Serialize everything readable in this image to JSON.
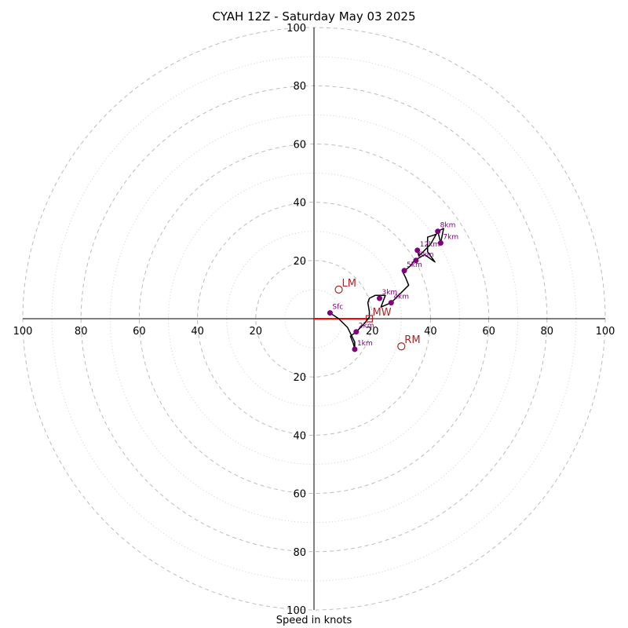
{
  "chart_data": {
    "type": "line",
    "title": "CYAH 12Z - Saturday May 03 2025",
    "xlabel": "Speed in knots",
    "ylabel": "",
    "xlim": [
      -100,
      100
    ],
    "ylim": [
      -100,
      100
    ],
    "ring_major": [
      20,
      40,
      60,
      80,
      100
    ],
    "ring_minor": [
      10,
      30,
      50,
      70,
      90
    ],
    "tick_labels": {
      "x": [
        {
          "value": -100,
          "label": "100"
        },
        {
          "value": -80,
          "label": "80"
        },
        {
          "value": -60,
          "label": "60"
        },
        {
          "value": -40,
          "label": "40"
        },
        {
          "value": -20,
          "label": "20"
        },
        {
          "value": 20,
          "label": "20"
        },
        {
          "value": 40,
          "label": "40"
        },
        {
          "value": 60,
          "label": "60"
        },
        {
          "value": 80,
          "label": "80"
        },
        {
          "value": 100,
          "label": "100"
        }
      ],
      "y": [
        {
          "value": 100,
          "label": "100"
        },
        {
          "value": 80,
          "label": "80"
        },
        {
          "value": 60,
          "label": "60"
        },
        {
          "value": 40,
          "label": "40"
        },
        {
          "value": 20,
          "label": "20"
        },
        {
          "value": -20,
          "label": "20"
        },
        {
          "value": -40,
          "label": "40"
        },
        {
          "value": -60,
          "label": "60"
        },
        {
          "value": -80,
          "label": "80"
        },
        {
          "value": -100,
          "label": "100"
        }
      ]
    },
    "trace": {
      "color": "#000000",
      "points": [
        [
          5.5,
          2.0
        ],
        [
          8.5,
          0.0
        ],
        [
          11.5,
          -3.0
        ],
        [
          12.5,
          -5.0
        ],
        [
          14.0,
          -8.0
        ],
        [
          14.0,
          -10.5
        ],
        [
          13.5,
          -8.5
        ],
        [
          12.5,
          -6.0
        ],
        [
          14.5,
          -4.5
        ],
        [
          17.0,
          -2.0
        ],
        [
          19.0,
          0.5
        ],
        [
          19.0,
          2.5
        ],
        [
          18.5,
          5.5
        ],
        [
          19.0,
          7.0
        ],
        [
          21.0,
          8.0
        ],
        [
          24.5,
          8.0
        ],
        [
          23.0,
          4.0
        ],
        [
          26.5,
          5.5
        ],
        [
          29.0,
          8.0
        ],
        [
          32.5,
          11.5
        ],
        [
          31.5,
          14.0
        ],
        [
          30.5,
          16.0
        ],
        [
          33.0,
          18.0
        ],
        [
          34.5,
          20.0
        ],
        [
          38.0,
          22.0
        ],
        [
          41.5,
          19.5
        ],
        [
          39.0,
          23.0
        ],
        [
          39.0,
          28.0
        ],
        [
          42.0,
          29.0
        ],
        [
          42.5,
          30.0
        ],
        [
          43.5,
          26.0
        ],
        [
          44.5,
          31.0
        ],
        [
          42.5,
          30.0
        ],
        [
          40.0,
          25.5
        ],
        [
          36.0,
          21.5
        ],
        [
          35.5,
          23.5
        ]
      ]
    },
    "height_points": [
      {
        "label": "Sfc",
        "u": 5.5,
        "v": 2.0
      },
      {
        "label": "1km",
        "u": 14.0,
        "v": -10.5
      },
      {
        "label": "2km",
        "u": 14.5,
        "v": -4.5
      },
      {
        "label": "3km",
        "u": 22.5,
        "v": 7.0
      },
      {
        "label": "4km",
        "u": 26.5,
        "v": 5.5
      },
      {
        "label": "5km",
        "u": 31.0,
        "v": 16.5
      },
      {
        "label": "6km",
        "u": 35.0,
        "v": 20.0
      },
      {
        "label": "7km",
        "u": 43.5,
        "v": 26.0
      },
      {
        "label": "8km",
        "u": 42.5,
        "v": 30.0
      },
      {
        "label": "12km",
        "u": 35.5,
        "v": 23.5
      }
    ],
    "storm_motions": [
      {
        "label": "LM",
        "u": 8.5,
        "v": 10.0,
        "marker": "circle"
      },
      {
        "label": "RM",
        "u": 30.0,
        "v": -9.5,
        "marker": "circle"
      },
      {
        "label": "MW",
        "u": 19.0,
        "v": 0.0,
        "marker": "square"
      }
    ],
    "motion_vector": {
      "color": "#ff0000",
      "from": [
        0,
        0
      ],
      "to": [
        19.0,
        0.0
      ]
    },
    "colors": {
      "point": "#800080",
      "point_label": "#800080",
      "motion": "#b22222",
      "grid": "#bdbdbd",
      "axis": "#000000"
    },
    "grid": true
  }
}
